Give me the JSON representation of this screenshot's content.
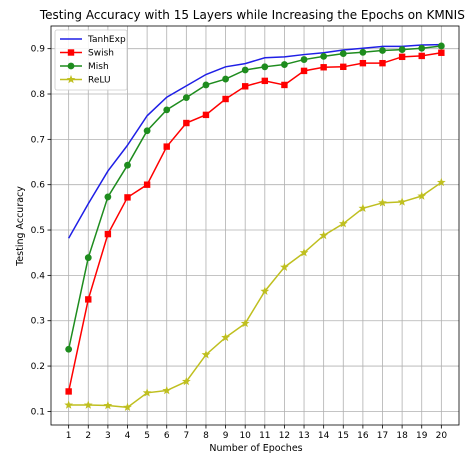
{
  "chart_data": {
    "type": "line",
    "title": "Testing Accuracy with 15 Layers while Increasing the Epochs on KMNIST",
    "xlabel": "Number of Epoches",
    "ylabel": "Testing Accuracy",
    "x": [
      1,
      2,
      3,
      4,
      5,
      6,
      7,
      8,
      9,
      10,
      11,
      12,
      13,
      14,
      15,
      16,
      17,
      18,
      19,
      20
    ],
    "xlim": [
      0.1,
      20.9
    ],
    "ylim": [
      0.07,
      0.95
    ],
    "yticks": [
      0.1,
      0.2,
      0.3,
      0.4,
      0.5,
      0.6,
      0.7,
      0.8,
      0.9
    ],
    "grid": true,
    "legend_position": "top-left",
    "series": [
      {
        "name": "TanhExp",
        "color": "#1f1fe6",
        "marker": "none",
        "values": [
          0.482,
          0.558,
          0.63,
          0.687,
          0.752,
          0.793,
          0.818,
          0.843,
          0.86,
          0.867,
          0.88,
          0.882,
          0.887,
          0.891,
          0.897,
          0.901,
          0.905,
          0.905,
          0.908,
          0.909
        ]
      },
      {
        "name": "Swish",
        "color": "#ff0000",
        "marker": "square",
        "values": [
          0.144,
          0.347,
          0.491,
          0.572,
          0.6,
          0.684,
          0.736,
          0.754,
          0.789,
          0.817,
          0.829,
          0.82,
          0.851,
          0.859,
          0.86,
          0.868,
          0.868,
          0.882,
          0.884,
          0.891
        ]
      },
      {
        "name": "Mish",
        "color": "#1e8c1e",
        "marker": "circle",
        "values": [
          0.237,
          0.439,
          0.573,
          0.643,
          0.719,
          0.765,
          0.792,
          0.82,
          0.833,
          0.853,
          0.86,
          0.865,
          0.876,
          0.883,
          0.889,
          0.892,
          0.896,
          0.898,
          0.901,
          0.906
        ]
      },
      {
        "name": "ReLU",
        "color": "#bfbf1f",
        "marker": "star",
        "values": [
          0.114,
          0.114,
          0.113,
          0.109,
          0.141,
          0.146,
          0.166,
          0.225,
          0.263,
          0.294,
          0.365,
          0.418,
          0.45,
          0.488,
          0.514,
          0.548,
          0.56,
          0.562,
          0.575,
          0.605
        ]
      }
    ]
  }
}
